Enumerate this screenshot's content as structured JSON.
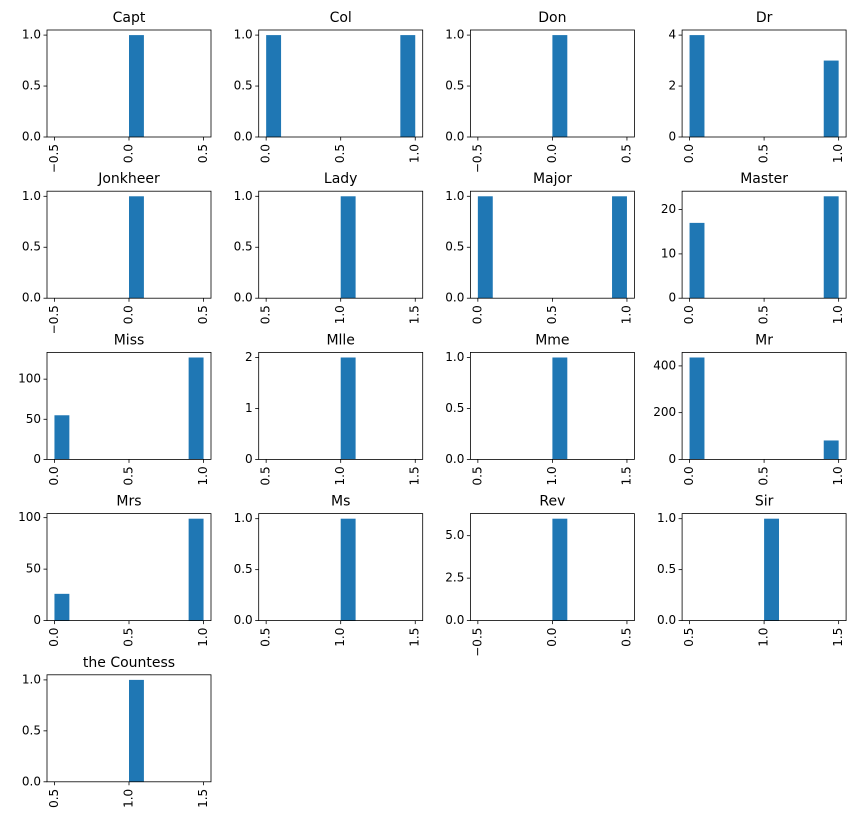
{
  "chart_data": [
    {
      "type": "histogram",
      "title": "Capt",
      "bins": [
        -0.5,
        -0.4,
        -0.3,
        -0.2,
        -0.1,
        0,
        0.1,
        0.2,
        0.3,
        0.4,
        0.5
      ],
      "counts": [
        0,
        0,
        0,
        0,
        0,
        1,
        0,
        0,
        0,
        0
      ],
      "xlim": [
        -0.55,
        0.55
      ],
      "xticks": [
        {
          "value": -0.5,
          "label": "−0.5"
        },
        {
          "value": 0,
          "label": "0.0"
        },
        0.5
      ],
      "ylim": [
        0,
        1.05
      ],
      "yticks": [
        {
          "value": 0,
          "label": "0.0"
        },
        0.5,
        {
          "value": 1,
          "label": "1.0"
        }
      ],
      "color": "#1f77b4"
    },
    {
      "type": "histogram",
      "title": "Col",
      "bins": [
        0,
        0.1,
        0.2,
        0.3,
        0.4,
        0.5,
        0.6,
        0.7,
        0.8,
        0.9,
        1
      ],
      "counts": [
        1,
        0,
        0,
        0,
        0,
        0,
        0,
        0,
        0,
        1
      ],
      "xlim": [
        -0.05,
        1.05
      ],
      "xticks": [
        {
          "value": 0,
          "label": "0.0"
        },
        0.5,
        {
          "value": 1,
          "label": "1.0"
        }
      ],
      "ylim": [
        0,
        1.05
      ],
      "yticks": [
        {
          "value": 0,
          "label": "0.0"
        },
        0.5,
        {
          "value": 1,
          "label": "1.0"
        }
      ],
      "color": "#1f77b4"
    },
    {
      "type": "histogram",
      "title": "Don",
      "bins": [
        -0.5,
        -0.4,
        -0.3,
        -0.2,
        -0.1,
        0,
        0.1,
        0.2,
        0.3,
        0.4,
        0.5
      ],
      "counts": [
        0,
        0,
        0,
        0,
        0,
        1,
        0,
        0,
        0,
        0
      ],
      "xlim": [
        -0.55,
        0.55
      ],
      "xticks": [
        {
          "value": -0.5,
          "label": "−0.5"
        },
        {
          "value": 0,
          "label": "0.0"
        },
        0.5
      ],
      "ylim": [
        0,
        1.05
      ],
      "yticks": [
        {
          "value": 0,
          "label": "0.0"
        },
        0.5,
        {
          "value": 1,
          "label": "1.0"
        }
      ],
      "color": "#1f77b4"
    },
    {
      "type": "histogram",
      "title": "Dr",
      "bins": [
        0,
        0.1,
        0.2,
        0.3,
        0.4,
        0.5,
        0.6,
        0.7,
        0.8,
        0.9,
        1
      ],
      "counts": [
        4,
        0,
        0,
        0,
        0,
        0,
        0,
        0,
        0,
        3
      ],
      "xlim": [
        -0.05,
        1.05
      ],
      "xticks": [
        {
          "value": 0,
          "label": "0.0"
        },
        0.5,
        {
          "value": 1,
          "label": "1.0"
        }
      ],
      "ylim": [
        0,
        4.2
      ],
      "yticks": [
        0,
        2,
        4
      ],
      "color": "#1f77b4"
    },
    {
      "type": "histogram",
      "title": "Jonkheer",
      "bins": [
        -0.5,
        -0.4,
        -0.3,
        -0.2,
        -0.1,
        0,
        0.1,
        0.2,
        0.3,
        0.4,
        0.5
      ],
      "counts": [
        0,
        0,
        0,
        0,
        0,
        1,
        0,
        0,
        0,
        0
      ],
      "xlim": [
        -0.55,
        0.55
      ],
      "xticks": [
        {
          "value": -0.5,
          "label": "−0.5"
        },
        {
          "value": 0,
          "label": "0.0"
        },
        0.5
      ],
      "ylim": [
        0,
        1.05
      ],
      "yticks": [
        {
          "value": 0,
          "label": "0.0"
        },
        0.5,
        {
          "value": 1,
          "label": "1.0"
        }
      ],
      "color": "#1f77b4"
    },
    {
      "type": "histogram",
      "title": "Lady",
      "bins": [
        0.5,
        0.6,
        0.7,
        0.8,
        0.9,
        1,
        1.1,
        1.2,
        1.3,
        1.4,
        1.5
      ],
      "counts": [
        0,
        0,
        0,
        0,
        0,
        1,
        0,
        0,
        0,
        0
      ],
      "xlim": [
        0.45,
        1.55
      ],
      "xticks": [
        0.5,
        {
          "value": 1,
          "label": "1.0"
        },
        1.5
      ],
      "ylim": [
        0,
        1.05
      ],
      "yticks": [
        {
          "value": 0,
          "label": "0.0"
        },
        0.5,
        {
          "value": 1,
          "label": "1.0"
        }
      ],
      "color": "#1f77b4"
    },
    {
      "type": "histogram",
      "title": "Major",
      "bins": [
        0,
        0.1,
        0.2,
        0.3,
        0.4,
        0.5,
        0.6,
        0.7,
        0.8,
        0.9,
        1
      ],
      "counts": [
        1,
        0,
        0,
        0,
        0,
        0,
        0,
        0,
        0,
        1
      ],
      "xlim": [
        -0.05,
        1.05
      ],
      "xticks": [
        {
          "value": 0,
          "label": "0.0"
        },
        0.5,
        {
          "value": 1,
          "label": "1.0"
        }
      ],
      "ylim": [
        0,
        1.05
      ],
      "yticks": [
        {
          "value": 0,
          "label": "0.0"
        },
        0.5,
        {
          "value": 1,
          "label": "1.0"
        }
      ],
      "color": "#1f77b4"
    },
    {
      "type": "histogram",
      "title": "Master",
      "bins": [
        0,
        0.1,
        0.2,
        0.3,
        0.4,
        0.5,
        0.6,
        0.7,
        0.8,
        0.9,
        1
      ],
      "counts": [
        17,
        0,
        0,
        0,
        0,
        0,
        0,
        0,
        0,
        23
      ],
      "xlim": [
        -0.05,
        1.05
      ],
      "xticks": [
        {
          "value": 0,
          "label": "0.0"
        },
        0.5,
        {
          "value": 1,
          "label": "1.0"
        }
      ],
      "ylim": [
        0,
        24.15
      ],
      "yticks": [
        0,
        10,
        20
      ],
      "color": "#1f77b4"
    },
    {
      "type": "histogram",
      "title": "Miss",
      "bins": [
        0,
        0.1,
        0.2,
        0.3,
        0.4,
        0.5,
        0.6,
        0.7,
        0.8,
        0.9,
        1
      ],
      "counts": [
        55,
        0,
        0,
        0,
        0,
        0,
        0,
        0,
        0,
        127
      ],
      "xlim": [
        -0.05,
        1.05
      ],
      "xticks": [
        {
          "value": 0,
          "label": "0.0"
        },
        0.5,
        {
          "value": 1,
          "label": "1.0"
        }
      ],
      "ylim": [
        0,
        133.35
      ],
      "yticks": [
        0,
        50,
        100
      ],
      "color": "#1f77b4"
    },
    {
      "type": "histogram",
      "title": "Mlle",
      "bins": [
        0.5,
        0.6,
        0.7,
        0.8,
        0.9,
        1,
        1.1,
        1.2,
        1.3,
        1.4,
        1.5
      ],
      "counts": [
        0,
        0,
        0,
        0,
        0,
        2,
        0,
        0,
        0,
        0
      ],
      "xlim": [
        0.45,
        1.55
      ],
      "xticks": [
        0.5,
        {
          "value": 1,
          "label": "1.0"
        },
        1.5
      ],
      "ylim": [
        0,
        2.1
      ],
      "yticks": [
        0,
        1,
        2
      ],
      "color": "#1f77b4"
    },
    {
      "type": "histogram",
      "title": "Mme",
      "bins": [
        0.5,
        0.6,
        0.7,
        0.8,
        0.9,
        1,
        1.1,
        1.2,
        1.3,
        1.4,
        1.5
      ],
      "counts": [
        0,
        0,
        0,
        0,
        0,
        1,
        0,
        0,
        0,
        0
      ],
      "xlim": [
        0.45,
        1.55
      ],
      "xticks": [
        0.5,
        {
          "value": 1,
          "label": "1.0"
        },
        1.5
      ],
      "ylim": [
        0,
        1.05
      ],
      "yticks": [
        {
          "value": 0,
          "label": "0.0"
        },
        0.5,
        {
          "value": 1,
          "label": "1.0"
        }
      ],
      "color": "#1f77b4"
    },
    {
      "type": "histogram",
      "title": "Mr",
      "bins": [
        0,
        0.1,
        0.2,
        0.3,
        0.4,
        0.5,
        0.6,
        0.7,
        0.8,
        0.9,
        1
      ],
      "counts": [
        436,
        0,
        0,
        0,
        0,
        0,
        0,
        0,
        0,
        81
      ],
      "xlim": [
        -0.05,
        1.05
      ],
      "xticks": [
        {
          "value": 0,
          "label": "0.0"
        },
        0.5,
        {
          "value": 1,
          "label": "1.0"
        }
      ],
      "ylim": [
        0,
        457.8
      ],
      "yticks": [
        0,
        200,
        400
      ],
      "color": "#1f77b4"
    },
    {
      "type": "histogram",
      "title": "Mrs",
      "bins": [
        0,
        0.1,
        0.2,
        0.3,
        0.4,
        0.5,
        0.6,
        0.7,
        0.8,
        0.9,
        1
      ],
      "counts": [
        26,
        0,
        0,
        0,
        0,
        0,
        0,
        0,
        0,
        99
      ],
      "xlim": [
        -0.05,
        1.05
      ],
      "xticks": [
        {
          "value": 0,
          "label": "0.0"
        },
        0.5,
        {
          "value": 1,
          "label": "1.0"
        }
      ],
      "ylim": [
        0,
        103.95
      ],
      "yticks": [
        0,
        50,
        100
      ],
      "color": "#1f77b4"
    },
    {
      "type": "histogram",
      "title": "Ms",
      "bins": [
        0.5,
        0.6,
        0.7,
        0.8,
        0.9,
        1,
        1.1,
        1.2,
        1.3,
        1.4,
        1.5
      ],
      "counts": [
        0,
        0,
        0,
        0,
        0,
        1,
        0,
        0,
        0,
        0
      ],
      "xlim": [
        0.45,
        1.55
      ],
      "xticks": [
        0.5,
        {
          "value": 1,
          "label": "1.0"
        },
        1.5
      ],
      "ylim": [
        0,
        1.05
      ],
      "yticks": [
        {
          "value": 0,
          "label": "0.0"
        },
        0.5,
        {
          "value": 1,
          "label": "1.0"
        }
      ],
      "color": "#1f77b4"
    },
    {
      "type": "histogram",
      "title": "Rev",
      "bins": [
        -0.5,
        -0.4,
        -0.3,
        -0.2,
        -0.1,
        0,
        0.1,
        0.2,
        0.3,
        0.4,
        0.5
      ],
      "counts": [
        0,
        0,
        0,
        0,
        0,
        6,
        0,
        0,
        0,
        0
      ],
      "xlim": [
        -0.55,
        0.55
      ],
      "xticks": [
        {
          "value": -0.5,
          "label": "−0.5"
        },
        {
          "value": 0,
          "label": "0.0"
        },
        0.5
      ],
      "ylim": [
        0,
        6.3
      ],
      "yticks": [
        {
          "value": 0,
          "label": "0.0"
        },
        2.5,
        {
          "value": 5,
          "label": "5.0"
        }
      ],
      "color": "#1f77b4"
    },
    {
      "type": "histogram",
      "title": "Sir",
      "bins": [
        0.5,
        0.6,
        0.7,
        0.8,
        0.9,
        1,
        1.1,
        1.2,
        1.3,
        1.4,
        1.5
      ],
      "counts": [
        0,
        0,
        0,
        0,
        0,
        1,
        0,
        0,
        0,
        0
      ],
      "xlim": [
        0.45,
        1.55
      ],
      "xticks": [
        0.5,
        {
          "value": 1,
          "label": "1.0"
        },
        1.5
      ],
      "ylim": [
        0,
        1.05
      ],
      "yticks": [
        {
          "value": 0,
          "label": "0.0"
        },
        0.5,
        {
          "value": 1,
          "label": "1.0"
        }
      ],
      "color": "#1f77b4"
    },
    {
      "type": "histogram",
      "title": "the Countess",
      "bins": [
        0.5,
        0.6,
        0.7,
        0.8,
        0.9,
        1,
        1.1,
        1.2,
        1.3,
        1.4,
        1.5
      ],
      "counts": [
        0,
        0,
        0,
        0,
        0,
        1,
        0,
        0,
        0,
        0
      ],
      "xlim": [
        0.45,
        1.55
      ],
      "xticks": [
        0.5,
        {
          "value": 1,
          "label": "1.0"
        },
        1.5
      ],
      "ylim": [
        0,
        1.05
      ],
      "yticks": [
        {
          "value": 0,
          "label": "0.0"
        },
        0.5,
        {
          "value": 1,
          "label": "1.0"
        }
      ],
      "color": "#1f77b4"
    }
  ]
}
